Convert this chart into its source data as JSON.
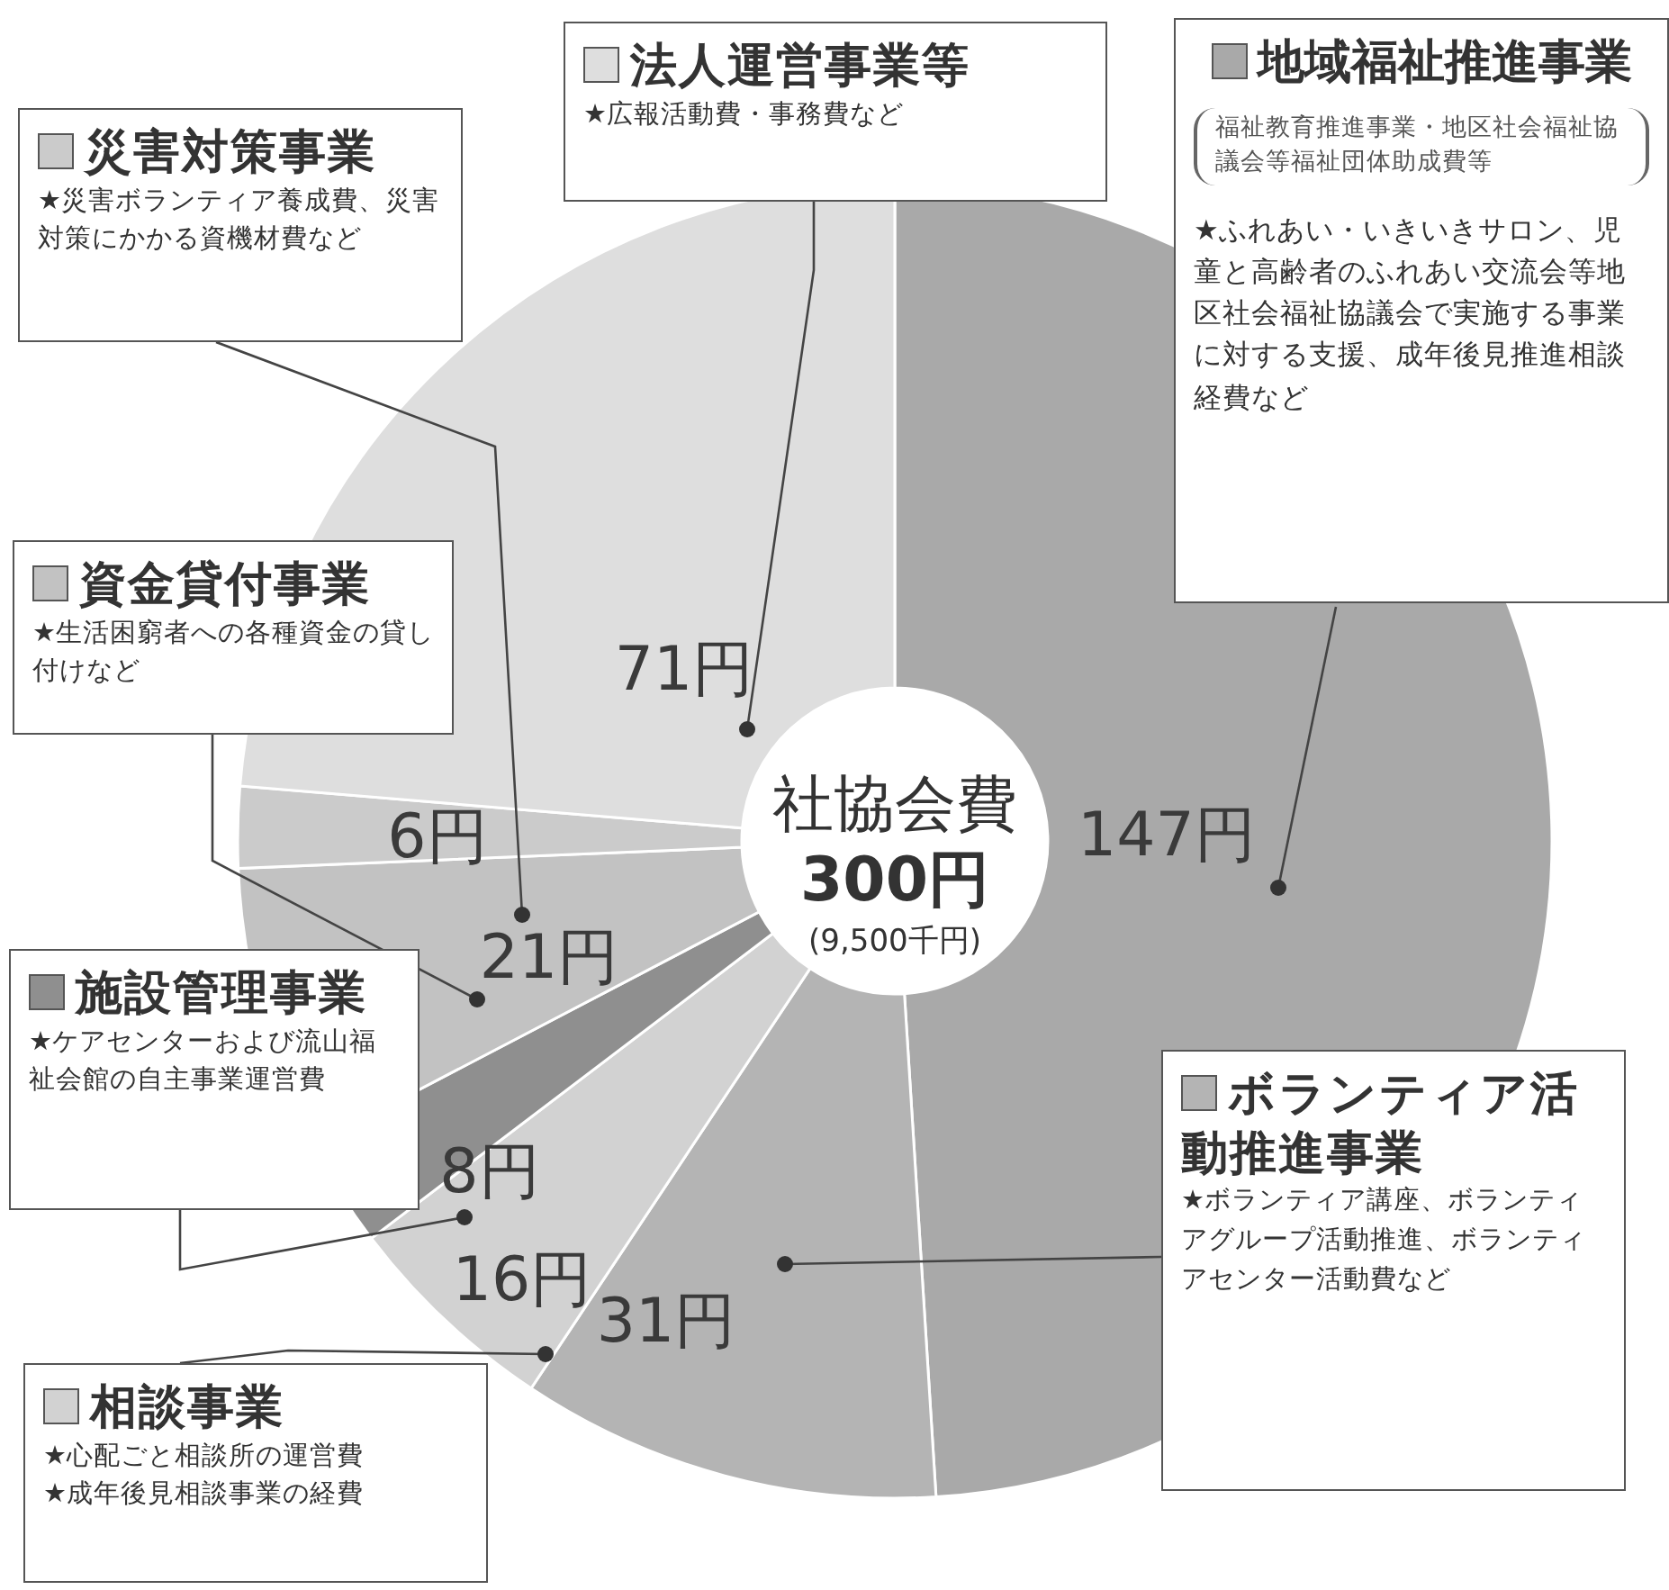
{
  "chart_data": {
    "type": "donut",
    "legend": "left",
    "title": "社協会費",
    "subtitle": "300円",
    "categories": [
      "地域福祉推進事業",
      "ボランティア活動推進事業",
      "相談事業",
      "施設管理事業",
      "資金貸付事業",
      "災害対策事業",
      "法人運営事業等"
    ],
    "values": [
      147,
      31,
      16,
      8,
      21,
      6,
      71
    ],
    "value_labels": [
      "147円",
      "31円",
      "16円",
      "8円",
      "21円",
      "6円",
      "71円"
    ],
    "colors": [
      "#a9a9a9",
      "#b4b4b4",
      "#d2d2d2",
      "#8f8f8f",
      "#c2c2c2",
      "#cbcbcb",
      "#dedede"
    ],
    "annotations": [
      "(9,500千円)",
      "福祉教育推進事業・地区社会福祉協議会等福祉団体助成費等",
      "★ふれあい・いきいきサロン、児童と高齢者のふれあい交流会等地区社会福祉協議会で実施する事業に対する支援、成年後見推進相談経費など",
      "★ボランティア講座、ボランティアグループ活動推進、ボランティアセンター活動費など",
      "★心配ごと相談所の運営費",
      "★成年後見相談事業の経費",
      "★ケアセンターおよび流山福祉会館の自主事業運営費",
      "★生活困窮者への各種資金の貸し付けなど",
      "★災害ボランティア養成費、災害対策にかかる資機材費など",
      "★広報活動費・事務費など"
    ]
  }
}
